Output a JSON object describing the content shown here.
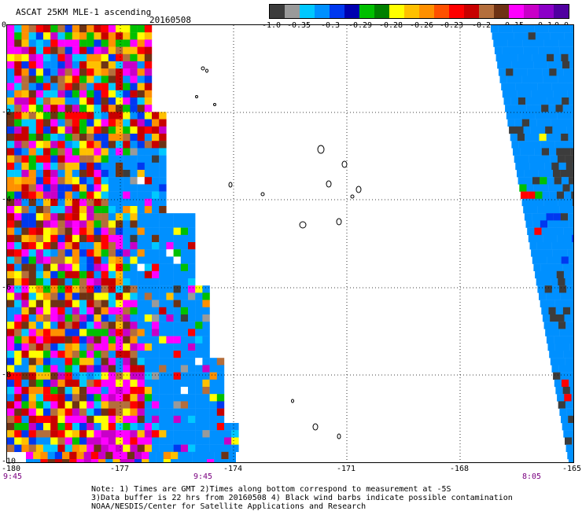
{
  "header": {
    "title": "ASCAT 25KM MLE-1 ascending",
    "date": "20160508"
  },
  "colorbar": {
    "colors": [
      "#3c3c3c",
      "#9a9a9a",
      "#00c8ff",
      "#0090ff",
      "#0038f0",
      "#0000b0",
      "#00c000",
      "#008000",
      "#ffff00",
      "#ffc000",
      "#ff9000",
      "#ff5000",
      "#ff0000",
      "#c80000",
      "#b46e3c",
      "#6e3214",
      "#ff00ff",
      "#c800c8",
      "#8c00c8",
      "#5000a0"
    ],
    "labels": [
      "-1.0",
      "-0.35",
      "-0.3",
      "-0.29",
      "-0.28",
      "-0.26",
      "-0.23",
      "-0.2",
      "-0.15",
      "-0.1",
      "0.0"
    ]
  },
  "axes": {
    "x_labels": [
      "-180",
      "-177",
      "-174",
      "-171",
      "-168",
      "-165"
    ],
    "y_labels": [
      "0",
      "-2",
      "-4",
      "-6",
      "-8",
      "-10"
    ],
    "times": [
      "9:45",
      "9:45",
      "8:05"
    ]
  },
  "notes": {
    "line1": "Note: 1) Times are GMT 2)Times along bottom correspond to measurement at -5S",
    "line2": "3)Data buffer is 22 hrs from 20160508 4) Black wind barbs indicate possible contamination",
    "line3": "NOAA/NESDIS/Center for Satellite Applications and Research"
  }
}
